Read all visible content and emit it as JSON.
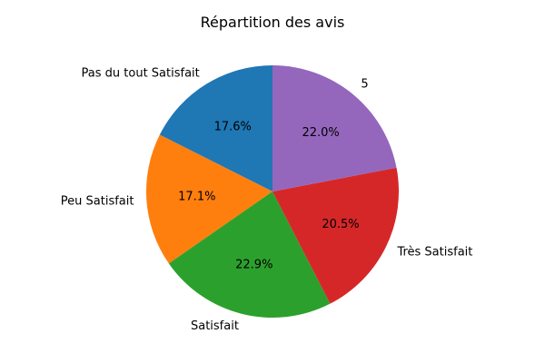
{
  "chart_data": {
    "type": "pie",
    "title": "Répartition des avis",
    "labels": [
      "Pas du tout Satisfait",
      "Peu Satisfait",
      "Satisfait",
      "Très Satisfait",
      "5"
    ],
    "values": [
      17.6,
      17.1,
      22.9,
      20.5,
      22.0
    ],
    "percent_labels": [
      "17.6%",
      "17.1%",
      "22.9%",
      "20.5%",
      "22.0%"
    ],
    "colors": [
      "#1f77b4",
      "#ff7f0e",
      "#2ca02c",
      "#d62728",
      "#9467bd"
    ],
    "start_angle_deg": 90,
    "direction": "counterclockwise"
  }
}
